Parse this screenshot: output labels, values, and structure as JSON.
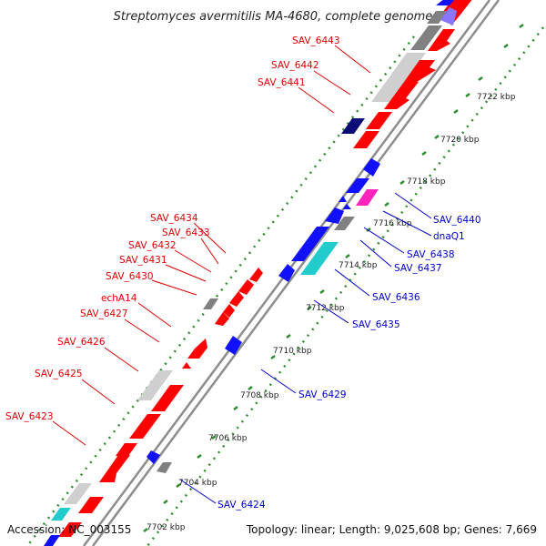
{
  "title": "Streptomyces avermitilis MA-4680, complete genome",
  "accession": "Accession: NC_003155",
  "summary": "Topology: linear; Length: 9,025,608 bp; Genes: 7,669",
  "colors": {
    "backbone": "#8c8c8c",
    "tick": "#2e8b2e",
    "red_label": "#dd0000",
    "blue_label": "#0000cc",
    "gene_red": "#ff0000",
    "gene_blue": "#1010ff",
    "gene_navy": "#0b0b78",
    "gene_gray": "#808080",
    "gene_lightgray": "#cfcfcf",
    "gene_cyan": "#22cccc",
    "gene_magenta": "#ff22bb"
  },
  "scale_labels": [
    "7722 kbp",
    "7720 kbp",
    "7718 kbp",
    "7716 kbp",
    "7714 kbp",
    "7712 kbp",
    "7710 kbp",
    "7708 kbp",
    "7706 kbp",
    "7704 kbp",
    "7702 kbp"
  ],
  "left_labels": [
    "SAV_6443",
    "SAV_6442",
    "SAV_6441",
    "SAV_6434",
    "SAV_6433",
    "SAV_6432",
    "SAV_6431",
    "SAV_6430",
    "echA14",
    "SAV_6427",
    "SAV_6426",
    "SAV_6425",
    "SAV_6423"
  ],
  "right_labels": [
    "SAV_6440",
    "dnaQ1",
    "SAV_6438",
    "SAV_6437",
    "SAV_6436",
    "SAV_6435",
    "SAV_6429",
    "SAV_6424"
  ]
}
